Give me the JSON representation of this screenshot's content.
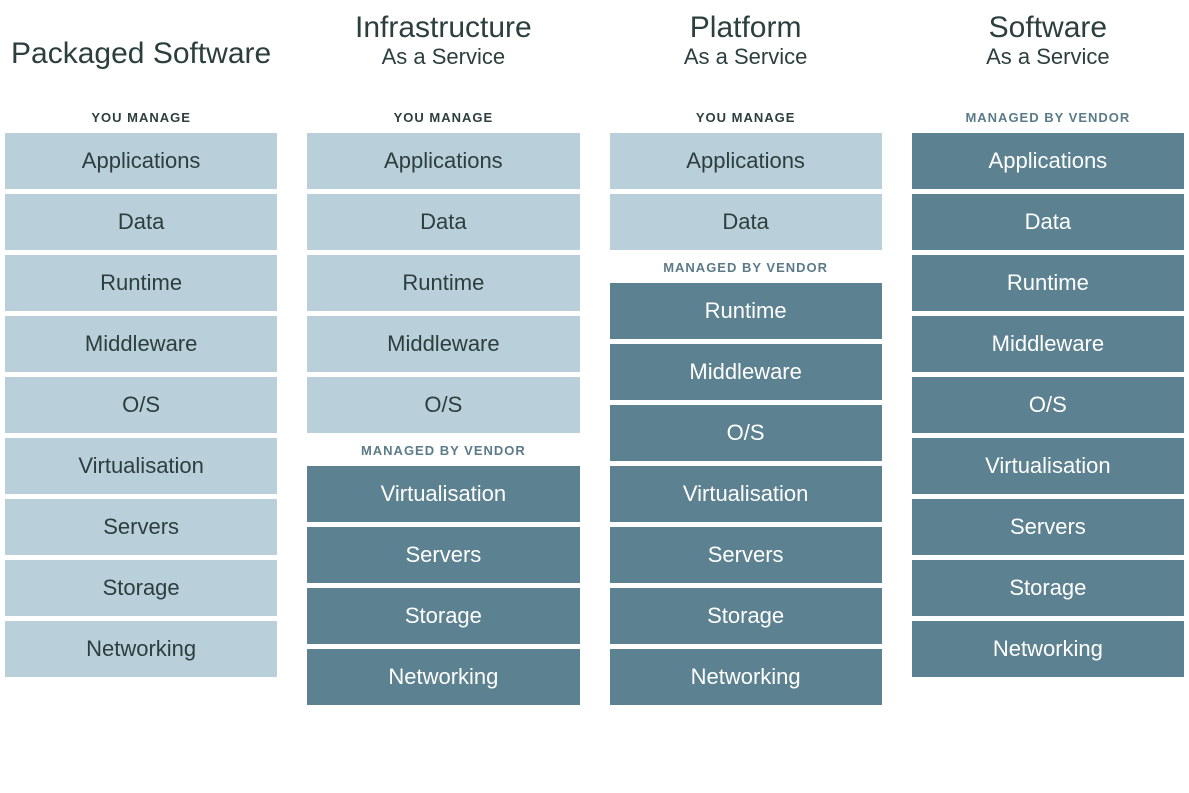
{
  "type": "infographic",
  "labels": {
    "you_manage": "YOU MANAGE",
    "managed_by_vendor": "MANAGED BY VENDOR"
  },
  "colors": {
    "you_bg": "#b9cfd9",
    "you_text": "#2c3e3e",
    "vendor_bg": "#5c8190",
    "vendor_text": "#ffffff",
    "heading_text": "#2c3e3e",
    "background": "#ffffff"
  },
  "typography": {
    "title_fontsize": 30,
    "subtitle_fontsize": 22,
    "section_label_fontsize": 13,
    "layer_fontsize": 22,
    "font_family": "Arial"
  },
  "layout": {
    "layer_height": 56,
    "layer_gap": 5,
    "column_gap": 30
  },
  "columns": [
    {
      "title": "Packaged Software",
      "subtitle": "",
      "groups": [
        {
          "label_key": "you_manage",
          "style": "you",
          "layers": [
            "Applications",
            "Data",
            "Runtime",
            "Middleware",
            "O/S",
            "Virtualisation",
            "Servers",
            "Storage",
            "Networking"
          ]
        }
      ]
    },
    {
      "title": "Infrastructure",
      "subtitle": "As a Service",
      "groups": [
        {
          "label_key": "you_manage",
          "style": "you",
          "layers": [
            "Applications",
            "Data",
            "Runtime",
            "Middleware",
            "O/S"
          ]
        },
        {
          "label_key": "managed_by_vendor",
          "style": "vendor",
          "layers": [
            "Virtualisation",
            "Servers",
            "Storage",
            "Networking"
          ]
        }
      ]
    },
    {
      "title": "Platform",
      "subtitle": "As a Service",
      "groups": [
        {
          "label_key": "you_manage",
          "style": "you",
          "layers": [
            "Applications",
            "Data"
          ]
        },
        {
          "label_key": "managed_by_vendor",
          "style": "vendor",
          "layers": [
            "Runtime",
            "Middleware",
            "O/S",
            "Virtualisation",
            "Servers",
            "Storage",
            "Networking"
          ]
        }
      ]
    },
    {
      "title": "Software",
      "subtitle": "As a Service",
      "groups": [
        {
          "label_key": "managed_by_vendor",
          "style": "vendor",
          "layers": [
            "Applications",
            "Data",
            "Runtime",
            "Middleware",
            "O/S",
            "Virtualisation",
            "Servers",
            "Storage",
            "Networking"
          ]
        }
      ]
    }
  ]
}
